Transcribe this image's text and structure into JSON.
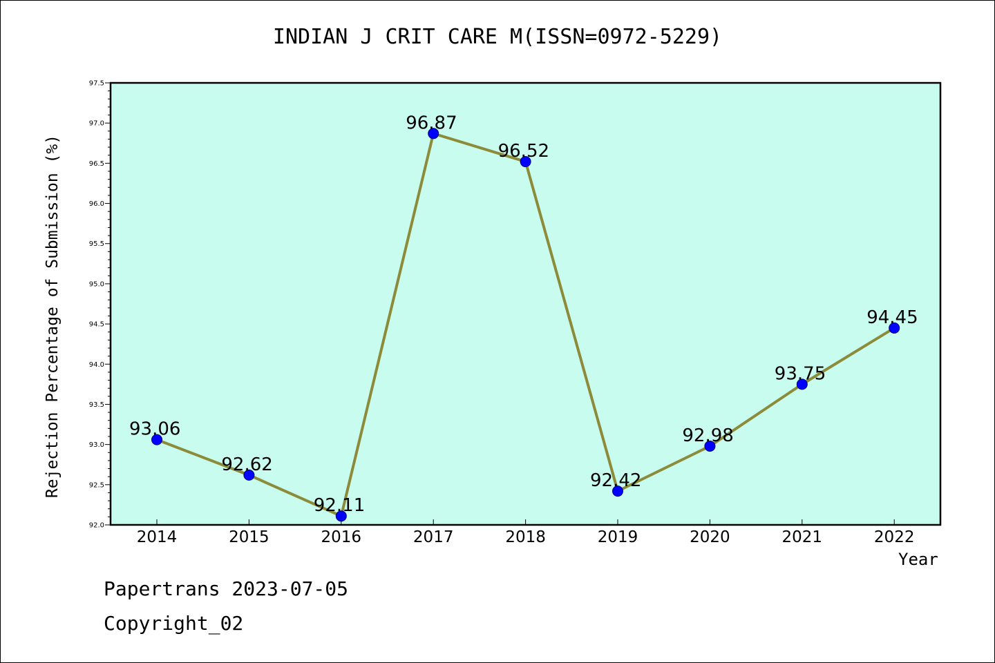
{
  "chart_data": {
    "type": "line",
    "title": "INDIAN J CRIT CARE M(ISSN=0972-5229)",
    "xlabel": "Year",
    "ylabel": "Rejection Percentage of Submission (%)",
    "categories": [
      "2014",
      "2015",
      "2016",
      "2017",
      "2018",
      "2019",
      "2020",
      "2021",
      "2022"
    ],
    "series": [
      {
        "values": [
          93.06,
          92.62,
          92.11,
          96.87,
          96.52,
          92.42,
          92.98,
          93.75,
          94.45
        ],
        "labels": [
          "93.06",
          "92.62",
          "92.11",
          "96.87",
          "96.52",
          "92.42",
          "92.98",
          "93.75",
          "94.45"
        ]
      }
    ],
    "ylim": [
      92.0,
      97.5
    ],
    "yticks": [
      "92.0",
      "92.5",
      "93.0",
      "93.5",
      "94.0",
      "94.5",
      "95.0",
      "95.5",
      "96.0",
      "96.5",
      "97.0",
      "97.5"
    ],
    "grid": false,
    "legend": "none",
    "colors": {
      "plot_background": "#c8fcee",
      "line": "#8b8b3a",
      "marker": "#0000ff"
    }
  },
  "footer": {
    "line1": "Papertrans 2023-07-05",
    "line2": "Copyright_02"
  }
}
